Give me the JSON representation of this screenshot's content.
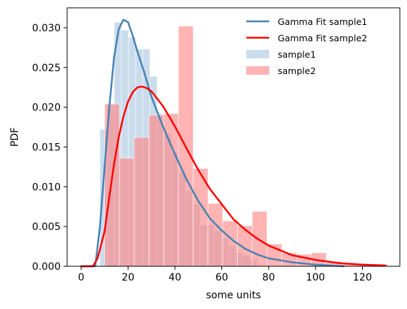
{
  "chart_data": {
    "type": "bar",
    "title": "",
    "xlabel": "some units",
    "ylabel": "PDF",
    "xlim": [
      -6,
      136
    ],
    "ylim": [
      0,
      0.0325
    ],
    "xticks": [
      0,
      20,
      40,
      60,
      80,
      100,
      120
    ],
    "yticks": [
      0.0,
      0.005,
      0.01,
      0.015,
      0.02,
      0.025,
      0.03
    ],
    "ytick_labels": [
      "0.000",
      "0.005",
      "0.010",
      "0.015",
      "0.020",
      "0.025",
      "0.030"
    ],
    "grid": false,
    "legend_position": "top-right",
    "histograms": [
      {
        "name": "sample1",
        "color": "#a7c4df",
        "opacity": 0.6,
        "bin_edges": [
          8,
          11.05,
          14.1,
          17.15,
          20.2,
          23.25,
          26.3,
          29.35,
          32.4,
          35.45,
          38.5,
          41.55,
          44.6,
          47.65,
          50.7,
          53.75,
          56.8,
          59.85,
          62.9,
          65.95,
          69,
          72.05,
          75.1
        ],
        "values": [
          0.0172,
          0.0203,
          0.0307,
          0.0297,
          0.0288,
          0.0273,
          0.0273,
          0.0239,
          0.0192,
          0.0167,
          0.0143,
          0.0118,
          0.0095,
          0.0078,
          0.0052,
          0.0052,
          0.0045,
          0.0036,
          0.0026,
          0.0017,
          0.0014,
          0.0009
        ]
      },
      {
        "name": "sample2",
        "color": "#ff8080",
        "opacity": 0.6,
        "bin_edges": [
          10,
          16.3,
          22.6,
          28.9,
          35.2,
          41.5,
          47.8,
          54.1,
          60.4,
          66.7,
          73,
          79.3,
          85.6,
          91.9,
          98.2,
          104.5,
          110.8,
          117.1,
          123.4,
          129.7
        ],
        "values": [
          0.0204,
          0.0136,
          0.0162,
          0.019,
          0.0192,
          0.0302,
          0.0123,
          0.0079,
          0.0057,
          0.0051,
          0.0069,
          0.0028,
          0.0017,
          0.0015,
          0.0017,
          0.0006,
          0.0004,
          0.0002,
          0.0001
        ]
      }
    ],
    "series": [
      {
        "name": "Gamma Fit sample1",
        "color": "#4682b4",
        "x": [
          0,
          6,
          8,
          10,
          12,
          14,
          16,
          18,
          20,
          22,
          24,
          27,
          30,
          35,
          40,
          45,
          50,
          55,
          60,
          65,
          70,
          75,
          80,
          90,
          100,
          112
        ],
        "y": [
          0,
          0,
          0.005,
          0.0125,
          0.02,
          0.0262,
          0.0298,
          0.031,
          0.0307,
          0.029,
          0.027,
          0.0243,
          0.0213,
          0.0175,
          0.0141,
          0.0109,
          0.0082,
          0.006,
          0.0045,
          0.0032,
          0.0022,
          0.0015,
          0.001,
          0.0005,
          0.0002,
          0
        ]
      },
      {
        "name": "Gamma Fit sample2",
        "color": "#ff0000",
        "x": [
          0,
          5,
          7,
          10,
          12,
          14,
          16,
          18,
          20,
          22,
          24,
          26,
          28,
          30,
          35,
          40,
          45,
          50,
          55,
          60,
          65,
          70,
          75,
          80,
          90,
          100,
          110,
          120,
          130
        ],
        "y": [
          0,
          0,
          0.001,
          0.0044,
          0.0087,
          0.0128,
          0.0162,
          0.0188,
          0.0207,
          0.0219,
          0.0225,
          0.0226,
          0.0224,
          0.022,
          0.0201,
          0.0176,
          0.0148,
          0.0121,
          0.0097,
          0.0078,
          0.0059,
          0.0046,
          0.0035,
          0.0026,
          0.0014,
          0.0008,
          0.0004,
          0.0002,
          0.0001
        ]
      }
    ],
    "legend": [
      {
        "label": "Gamma Fit sample1",
        "kind": "line",
        "color": "#4682b4"
      },
      {
        "label": "Gamma Fit sample2",
        "kind": "line",
        "color": "#ff0000"
      },
      {
        "label": "sample1",
        "kind": "patch",
        "color": "#a7c4df"
      },
      {
        "label": "sample2",
        "kind": "patch",
        "color": "#ff8080"
      }
    ]
  }
}
